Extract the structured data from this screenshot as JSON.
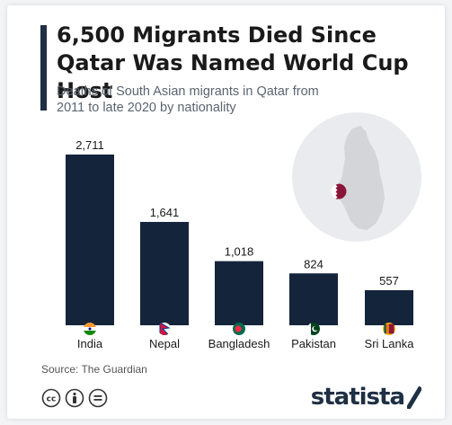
{
  "header": {
    "title": "6,500 Migrants Died Since Qatar Was Named World Cup Host",
    "subtitle": "Deaths of South Asian migrants in Qatar from 2011 to late 2020 by nationality"
  },
  "chart_data": {
    "type": "bar",
    "categories": [
      "India",
      "Nepal",
      "Bangladesh",
      "Pakistan",
      "Sri Lanka"
    ],
    "values": [
      2711,
      1641,
      1018,
      824,
      557
    ],
    "value_labels": [
      "2,711",
      "1,641",
      "1,018",
      "824",
      "557"
    ],
    "flags": [
      "india-flag-icon",
      "nepal-flag-icon",
      "bangladesh-flag-icon",
      "pakistan-flag-icon",
      "sri-lanka-flag-icon"
    ],
    "title": "",
    "xlabel": "",
    "ylabel": "",
    "ylim": [
      0,
      2711
    ],
    "grid": false,
    "bar_color": "#14243b"
  },
  "map": {
    "icon": "qatar-map-icon",
    "marker_icon": "qatar-flag-icon",
    "circle_color": "#e9ebee",
    "land_color": "#d3d5d8"
  },
  "footer": {
    "source": "Source: The Guardian",
    "license_icons": [
      "creative-commons-icon",
      "attribution-icon",
      "no-derivatives-icon"
    ],
    "brand": "statista"
  },
  "colors": {
    "accent": "#1f2f44",
    "text": "#1a1a1a",
    "muted": "#5a6470"
  }
}
